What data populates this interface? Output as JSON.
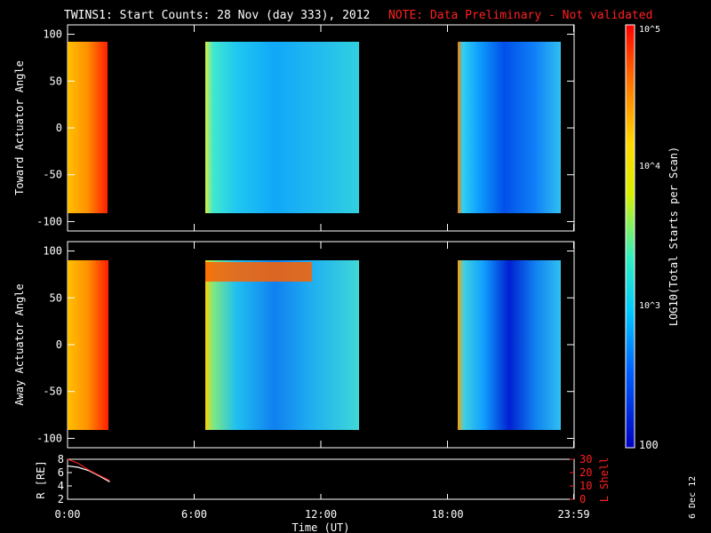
{
  "title": "TWINS1: Start Counts: 28 Nov (day 333), 2012",
  "note": "NOTE: Data Preliminary - Not validated",
  "date_stamp": "6 Dec 12",
  "colorbar": {
    "label": "LOG10(Total Starts per Scan)",
    "ticks": [
      "10^5",
      "10^4",
      "10^3",
      "100"
    ]
  },
  "colors": {
    "background": "#000000",
    "axis": "#ffffff",
    "note": "#ff2020",
    "lshell": "#ff2020"
  },
  "chart_data": [
    {
      "type": "heatmap",
      "panel": "toward",
      "ylabel": "Toward Actuator Angle",
      "ylim": [
        -110,
        110
      ],
      "yticks": [
        "100",
        "50",
        "0",
        "-50",
        "-100"
      ],
      "xlim_hours": [
        0,
        24
      ],
      "data_range_deg": [
        -90,
        90
      ],
      "coverage_intervals_hours": [
        [
          0.0,
          1.5
        ],
        [
          6.25,
          13.75
        ],
        [
          18.25,
          23.9
        ]
      ],
      "color_scale": "log10 counts, 100 to 1e5",
      "approx_log10_levels": [
        {
          "interval": [
            0.0,
            1.5
          ],
          "level": 4.3
        },
        {
          "interval": [
            6.25,
            13.75
          ],
          "level": 3.3
        },
        {
          "interval": [
            18.25,
            23.9
          ],
          "level": 2.8
        }
      ]
    },
    {
      "type": "heatmap",
      "panel": "away",
      "ylabel": "Away Actuator Angle",
      "ylim": [
        -110,
        110
      ],
      "yticks": [
        "100",
        "50",
        "0",
        "-50",
        "-100"
      ],
      "xlim_hours": [
        0,
        24
      ],
      "data_range_deg": [
        -90,
        90
      ],
      "coverage_intervals_hours": [
        [
          0.0,
          1.8
        ],
        [
          6.25,
          13.75
        ],
        [
          18.25,
          23.9
        ]
      ],
      "approx_log10_levels": [
        {
          "interval": [
            0.0,
            1.8
          ],
          "level": 4.4
        },
        {
          "interval": [
            6.25,
            13.75
          ],
          "level": 3.4,
          "band_high_angle": [
            65,
            90
          ],
          "band_level": 4.7
        },
        {
          "interval": [
            18.25,
            23.9
          ],
          "level": 2.9
        }
      ]
    },
    {
      "type": "line",
      "panel": "orbit",
      "ylabel": "R [RE]",
      "y2label": "L Shell",
      "ylim": [
        2,
        8
      ],
      "y2lim": [
        0,
        30
      ],
      "yticks": [
        "8",
        "6",
        "4",
        "2"
      ],
      "y2ticks": [
        "30",
        "20",
        "10",
        "0"
      ],
      "xlabel": "Time (UT)",
      "xticks": [
        "0:00",
        "6:00",
        "12:00",
        "18:00",
        "23:59"
      ],
      "series": [
        {
          "name": "R",
          "color": "#ffffff",
          "x": [
            0.0,
            0.5,
            1.0,
            1.5,
            2.0
          ],
          "y": [
            7.0,
            6.8,
            6.3,
            5.5,
            4.6
          ]
        },
        {
          "name": "L Shell",
          "color": "#ff2020",
          "x": [
            0.0,
            0.5,
            1.0,
            1.5,
            2.0
          ],
          "y": [
            31.0,
            27.0,
            22.0,
            18.0,
            14.0
          ]
        }
      ]
    }
  ]
}
